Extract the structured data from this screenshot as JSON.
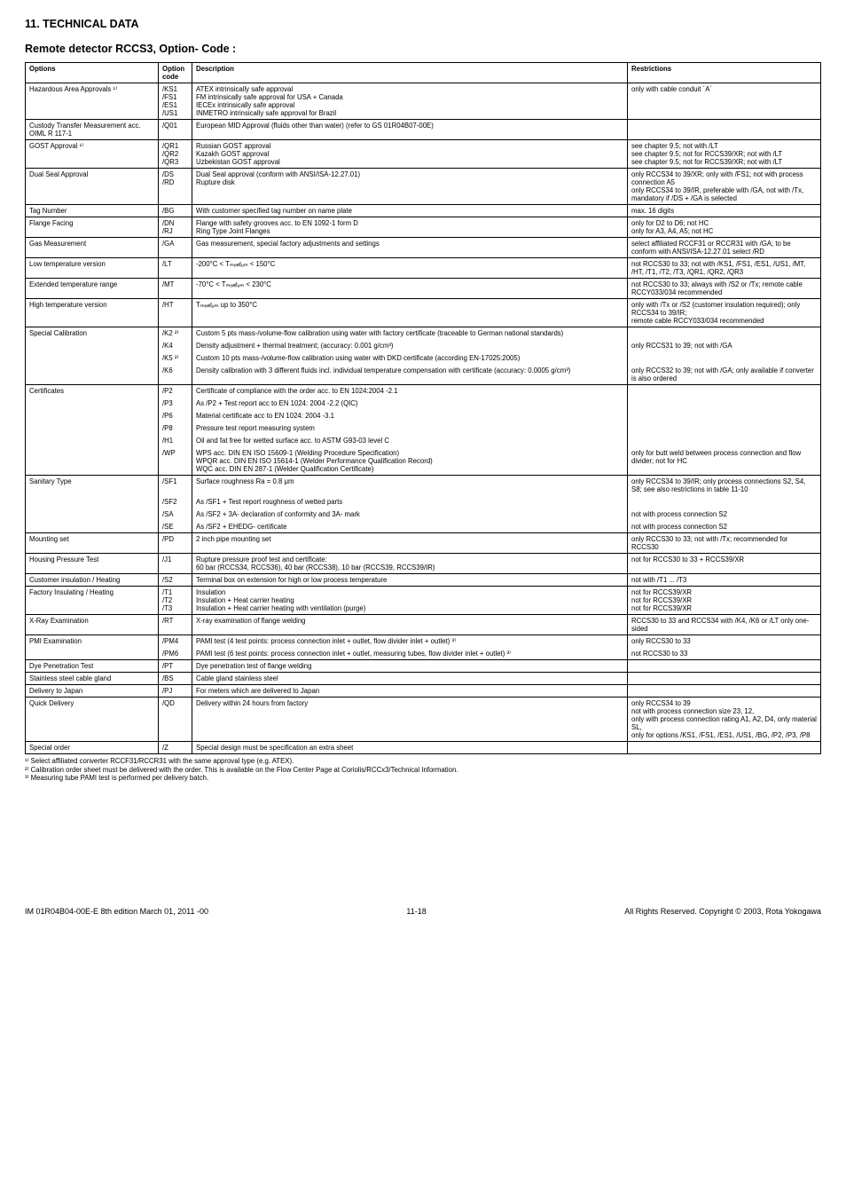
{
  "section_heading": "11. TECHNICAL DATA",
  "title": "Remote detector RCCS3, Option- Code :",
  "columns": [
    "Options",
    "Option code",
    "Description",
    "Restrictions"
  ],
  "rows": [
    {
      "opt": "Hazardous Area Approvals ¹⁾",
      "codes": [
        "/KS1",
        "/FS1",
        "/ES1",
        "/US1"
      ],
      "descs": [
        "ATEX intrinsically safe approval",
        "FM intrinsically safe approval for USA + Canada",
        "IECEx intrinsically safe approval",
        "INMETRO intrinsically safe approval for Brazil"
      ],
      "rest": "only with cable conduit ´A´"
    },
    {
      "opt": "Custody Transfer Measurement acc. OIML R 117-1",
      "codes": [
        "/Q01"
      ],
      "descs": [
        "European MID Approval (fluids other than water) (refer to GS 01R04B07-00E)"
      ],
      "rest": ""
    },
    {
      "opt": "GOST Approval ¹⁾",
      "codes": [
        "/QR1",
        "/QR2",
        "/QR3"
      ],
      "descs": [
        "Russian GOST approval",
        "Kazakh GOST approval",
        "Uzbekistan GOST approval"
      ],
      "rest": "see chapter 9.5; not with /LT\nsee chapter 9.5; not for RCCS39/XR; not with /LT\nsee chapter 9.5; not for RCCS39/XR; not with /LT"
    },
    {
      "opt": "Dual Seal Approval",
      "codes": [
        "/DS",
        "/RD"
      ],
      "descs": [
        "Dual Seal approval (conform with ANSI/ISA-12.27.01)",
        "Rupture disk"
      ],
      "rest": "only RCCS34 to 39/XR; only with /FS1; not with process connection A5\nonly RCCS34 to 39/IR, preferable with /GA, not with /Tx, mandatory if /DS + /GA is selected"
    },
    {
      "opt": "Tag Number",
      "codes": [
        "/BG"
      ],
      "descs": [
        "With customer specified tag number on name plate"
      ],
      "rest": "max. 16 digits"
    },
    {
      "opt": "Flange Facing",
      "codes": [
        "/DN",
        "/RJ"
      ],
      "descs": [
        "Flange with safety grooves acc. to EN 1092-1 form D",
        "Ring Type Joint Flanges"
      ],
      "rest": "only for D2 to D6; not HC\nonly for A3, A4, A5; not HC"
    },
    {
      "opt": "Gas Measurement",
      "codes": [
        "/GA"
      ],
      "descs": [
        "Gas measurement, special factory adjustments and settings"
      ],
      "rest": "select affiliated RCCF31 or RCCR31 with /GA; to be conform with ANSI/ISA-12.27.01 select /RD"
    },
    {
      "opt": "Low temperature version",
      "codes": [
        "/LT"
      ],
      "descs": [
        "-200°C < Tₘₑ𝒹ᵢᵤₘ < 150°C"
      ],
      "rest": "not RCCS30 to 33; not with /KS1, /FS1, /ES1, /US1, /MT, /HT, /T1, /T2, /T3, /QR1, /QR2, /QR3"
    },
    {
      "opt": "Extended temperature range",
      "codes": [
        "/MT"
      ],
      "descs": [
        "-70°C < Tₘₑ𝒹ᵢᵤₘ < 230°C"
      ],
      "rest": "not RCCS30 to 33; always with /S2 or /Tx; remote cable RCCY033/034 recommended"
    },
    {
      "opt": "High temperature version",
      "codes": [
        "/HT"
      ],
      "descs": [
        "Tₘₑ𝒹ᵢᵤₘ up to 350°C"
      ],
      "rest": "only with /Tx or /S2 (customer insulation required); only RCCS34 to 39/IR;\nremote cable RCCY033/034 recommended"
    },
    {
      "opt": "Special Calibration",
      "sub": [
        {
          "code": "/K2 ²⁾",
          "desc": "Custom 5 pts mass-/volume-flow calibration using water with factory certificate (traceable to German national standards)",
          "rest": ""
        },
        {
          "code": "/K4",
          "desc": "Density adjustment + thermal treatment; (accuracy: 0.001 g/cm³)",
          "rest": "only RCCS31 to 39; not with /GA"
        },
        {
          "code": "/K5 ²⁾",
          "desc": "Custom 10 pts mass-/volume-flow calibration using water with DKD certificate (according EN-17025:2005)",
          "rest": ""
        },
        {
          "code": "/K6",
          "desc": "Density calibration with 3 different fluids incl. individual temperature compensation with certificate (accuracy: 0.0005 g/cm³)",
          "rest": "only RCCS32 to 39; not with /GA; only available if converter is also ordered"
        }
      ]
    },
    {
      "opt": "Certificates",
      "sub": [
        {
          "code": "/P2",
          "desc": "Certificate of compliance with the order acc. to EN 1024:2004 -2.1",
          "rest": ""
        },
        {
          "code": "/P3",
          "desc": "As /P2 + Test report acc to EN 1024: 2004 -2.2 (QIC)",
          "rest": ""
        },
        {
          "code": "/P6",
          "desc": "Material certificate acc to EN 1024: 2004 -3.1",
          "rest": ""
        },
        {
          "code": "/P8",
          "desc": "Pressure test report measuring system",
          "rest": ""
        },
        {
          "code": "/H1",
          "desc": "Oil and fat free for wetted surface acc. to ASTM G93-03 level C",
          "rest": ""
        },
        {
          "code": "/WP",
          "desc": "WPS acc. DIN EN ISO 15609-1 (Welding Procedure Specification)\nWPQR acc. DIN EN ISO 15614-1 (Welder Performance Qualification Record)\nWQC acc. DIN EN 287-1 (Welder Qualification Certificate)",
          "rest": "only for butt weld between process connection and flow divider; not for HC"
        }
      ]
    },
    {
      "opt": "Sanitary Type",
      "sub": [
        {
          "code": "/SF1",
          "desc": "Surface roughness Ra = 0.8 µm",
          "rest": "only RCCS34 to 39/IR; only process connections S2, S4, S8; see also restrictions in table 11-10"
        },
        {
          "code": "/SF2",
          "desc": "As /SF1 + Test report roughness of wetted parts",
          "rest": ""
        },
        {
          "code": "/SA",
          "desc": "As /SF2 + 3A- declaration of conformity and 3A- mark",
          "rest": "not with process connection S2"
        },
        {
          "code": "/SE",
          "desc": "As /SF2 + EHEDG- certificate",
          "rest": "not with process connection S2"
        }
      ]
    },
    {
      "opt": "Mounting set",
      "codes": [
        "/PD"
      ],
      "descs": [
        "2 inch pipe mounting set"
      ],
      "rest": "only RCCS30 to 33; not with /Tx; recommended for RCCS30"
    },
    {
      "opt": "Housing Pressure Test",
      "codes": [
        "/J1"
      ],
      "descs": [
        "Rupture pressure proof test and certificate:\n60 bar (RCCS34, RCCS36), 40 bar (RCCS38), 10 bar (RCCS39, RCCS39/IR)"
      ],
      "rest": "not for RCCS30 to 33 + RCCS39/XR"
    },
    {
      "opt": "Customer insulation / Heating",
      "codes": [
        "/S2"
      ],
      "descs": [
        "Terminal box on extension for high or low process temperature"
      ],
      "rest": "not with /T1 ... /T3"
    },
    {
      "opt": "Factory Insulating / Heating",
      "codes": [
        "/T1",
        "/T2",
        "/T3"
      ],
      "descs": [
        "Insulation",
        "Insulation + Heat carrier heating",
        "Insulation + Heat carrier heating with ventilation (purge)"
      ],
      "rest": "not for RCCS39/XR\nnot for RCCS39/XR\nnot for RCCS39/XR"
    },
    {
      "opt": "X-Ray Examination",
      "codes": [
        "/RT"
      ],
      "descs": [
        "X-ray examination of flange welding"
      ],
      "rest": "RCCS30 to 33 and RCCS34 with /K4, /K6 or /LT only one-sided"
    },
    {
      "opt": "PMI Examination",
      "sub": [
        {
          "code": "/PM4",
          "desc": "PAMI test (4 test points: process connection inlet + outlet, flow divider inlet + outlet)  ³⁾",
          "rest": "only RCCS30 to 33"
        },
        {
          "code": "/PM6",
          "desc": "PAMI test (6 test points: process connection inlet + outlet, measuring tubes, flow divider inlet + outlet)  ³⁾",
          "rest": "not RCCS30 to 33"
        }
      ]
    },
    {
      "opt": "Dye Penetration Test",
      "codes": [
        "/PT"
      ],
      "descs": [
        "Dye penetration test of flange welding"
      ],
      "rest": ""
    },
    {
      "opt": "Stainless steel cable gland",
      "codes": [
        "/BS"
      ],
      "descs": [
        "Cable gland stainless steel"
      ],
      "rest": ""
    },
    {
      "opt": "Delivery to Japan",
      "codes": [
        "/PJ"
      ],
      "descs": [
        "For meters which are delivered to Japan"
      ],
      "rest": ""
    },
    {
      "opt": "Quick Delivery",
      "codes": [
        "/QD"
      ],
      "descs": [
        "Delivery within 24 hours from factory"
      ],
      "rest": "only  RCCS34 to 39\nnot with process connection size 23, 12,\nonly with process connection rating A1, A2, D4, only material SL,\nonly for options /KS1, /FS1, /ES1, /US1, /BG, /P2, /P3, /P8"
    },
    {
      "opt": "Special order",
      "codes": [
        "/Z"
      ],
      "descs": [
        "Special design must be specification an extra sheet"
      ],
      "rest": ""
    }
  ],
  "footnotes": [
    "¹⁾ Select affiliated converter RCCF31/RCCR31 with the same approval type (e.g. ATEX).",
    "²⁾ Calibration order sheet must be delivered with the order. This is available on the Flow Center Page at Coriolis/RCCx3/Technical Information.",
    "³⁾ Measuring tube PAMI test is performed per delivery batch."
  ],
  "footer": {
    "left": "IM 01R04B04-00E-E  8th edition March 01, 2011 -00",
    "center": "11-18",
    "right": "All Rights Reserved. Copyright © 2003, Rota Yokogawa"
  }
}
